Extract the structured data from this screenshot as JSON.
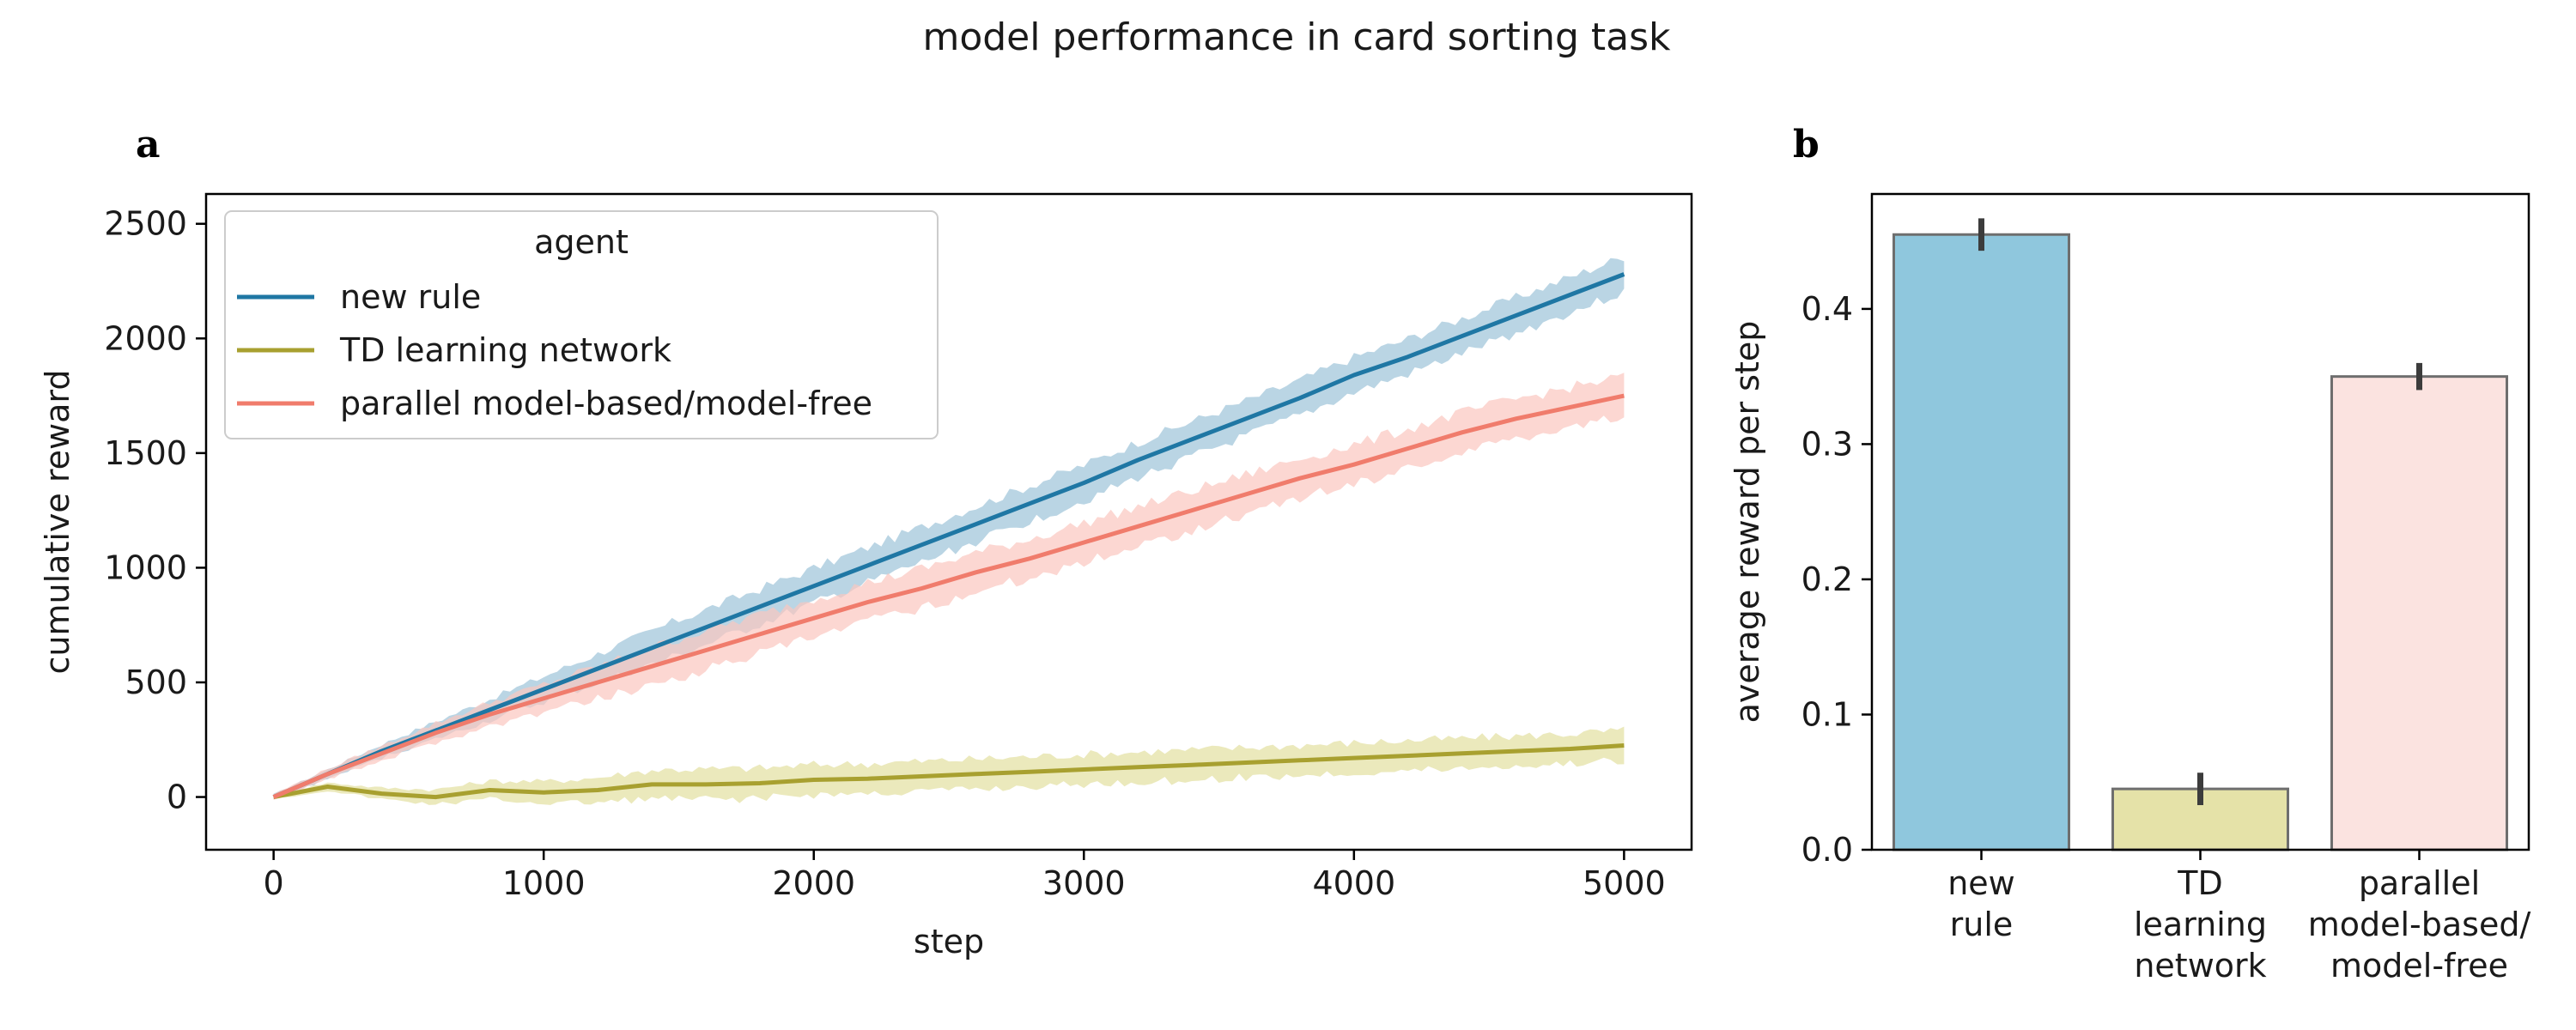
{
  "figure": {
    "title": "model performance in card sorting task"
  },
  "chart_data": [
    {
      "panel_label": "a",
      "type": "line",
      "xlabel": "step",
      "ylabel": "cumulative reward",
      "xlim": [
        -250,
        5250
      ],
      "ylim": [
        -230,
        2630
      ],
      "xticks": [
        0,
        1000,
        2000,
        3000,
        4000,
        5000
      ],
      "yticks": [
        0,
        500,
        1000,
        1500,
        2000,
        2500
      ],
      "legend": {
        "title": "agent",
        "placement": "top-left"
      },
      "grid": false,
      "series": [
        {
          "name": "new rule",
          "color": "#1f77a4",
          "band_color": "#9dc3d8",
          "x": [
            0,
            200,
            400,
            600,
            800,
            1000,
            1200,
            1400,
            1600,
            1800,
            2000,
            2200,
            2400,
            2600,
            2800,
            3000,
            3200,
            3400,
            3600,
            3800,
            4000,
            4200,
            4400,
            4600,
            4800,
            5000
          ],
          "y": [
            0,
            100,
            200,
            290,
            380,
            470,
            560,
            650,
            740,
            830,
            920,
            1010,
            1100,
            1190,
            1280,
            1370,
            1470,
            1560,
            1650,
            1740,
            1840,
            1920,
            2010,
            2100,
            2190,
            2280
          ],
          "band": 100
        },
        {
          "name": "TD learning network",
          "color": "#a8a030",
          "band_color": "#e2df9f",
          "x": [
            0,
            200,
            400,
            600,
            800,
            1000,
            1200,
            1400,
            1600,
            1800,
            2000,
            2200,
            2400,
            2600,
            2800,
            3000,
            3200,
            3400,
            3600,
            3800,
            4000,
            4200,
            4400,
            4600,
            4800,
            5000
          ],
          "y": [
            0,
            45,
            15,
            0,
            30,
            20,
            30,
            55,
            55,
            60,
            75,
            80,
            90,
            100,
            110,
            120,
            130,
            140,
            150,
            160,
            170,
            180,
            190,
            200,
            210,
            225
          ],
          "band": 85
        },
        {
          "name": "parallel model-based/model-free",
          "color": "#f07c6c",
          "band_color": "#fbc6bf",
          "x": [
            0,
            200,
            400,
            600,
            800,
            1000,
            1200,
            1400,
            1600,
            1800,
            2000,
            2200,
            2400,
            2600,
            2800,
            3000,
            3200,
            3400,
            3600,
            3800,
            4000,
            4200,
            4400,
            4600,
            4800,
            5000
          ],
          "y": [
            0,
            100,
            190,
            280,
            360,
            430,
            500,
            570,
            640,
            710,
            780,
            850,
            910,
            980,
            1040,
            1110,
            1180,
            1250,
            1320,
            1390,
            1450,
            1520,
            1590,
            1650,
            1700,
            1750
          ],
          "band": 110
        }
      ]
    },
    {
      "panel_label": "b",
      "type": "bar",
      "xlabel": "",
      "ylabel": "average reward per step",
      "ylim": [
        0,
        0.485
      ],
      "yticks": [
        0.0,
        0.1,
        0.2,
        0.3,
        0.4
      ],
      "ytick_labels": [
        "0.0",
        "0.1",
        "0.2",
        "0.3",
        "0.4"
      ],
      "grid": false,
      "categories": [
        [
          "new",
          "rule"
        ],
        [
          "TD",
          "learning",
          "network"
        ],
        [
          "parallel",
          "model-based/",
          "model-free"
        ]
      ],
      "values": [
        0.455,
        0.045,
        0.35
      ],
      "errors": [
        0.012,
        0.012,
        0.01
      ],
      "colors": [
        "#8fc7dd",
        "#e5e2a8",
        "#fbe3e0"
      ]
    }
  ]
}
